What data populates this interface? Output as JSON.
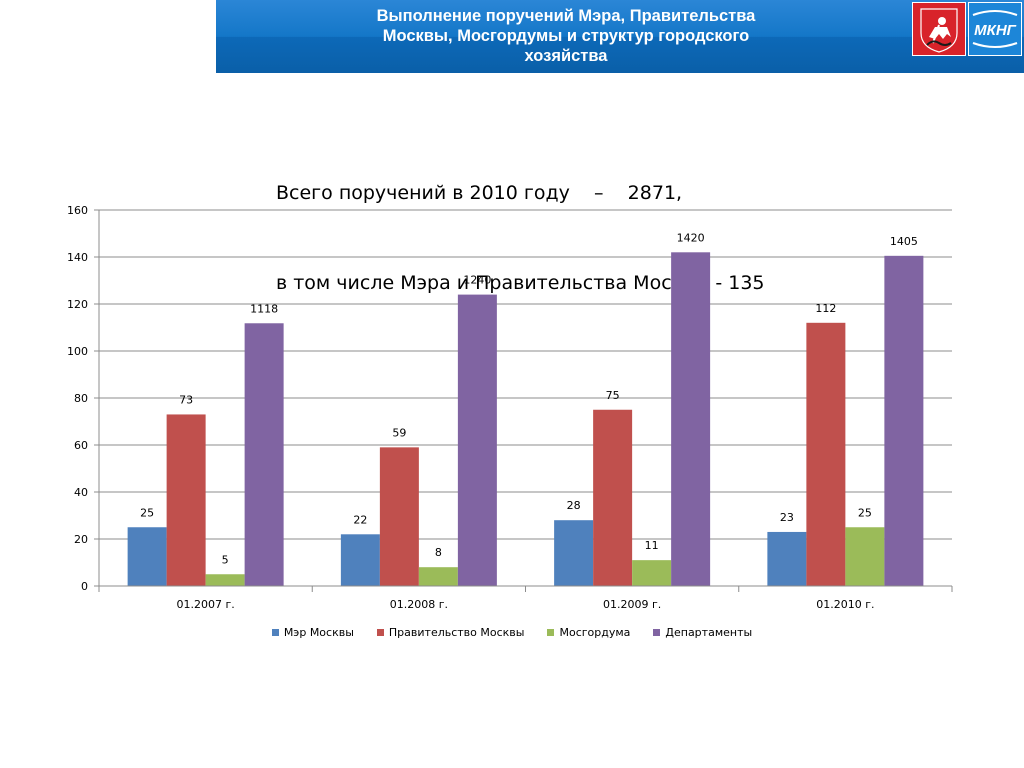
{
  "header": {
    "title_lines": [
      "Выполнение поручений Мэра, Правительства",
      "Москвы, Мосгордумы и структур городского",
      "хозяйства"
    ],
    "logo_text": "МКНГ"
  },
  "summary": {
    "line1": "Всего поручений в 2010 году    –    2871,",
    "line2": "в том числе Мэра и Правительства Москвы - 135"
  },
  "chart_data": {
    "type": "bar",
    "categories": [
      "01.2007 г.",
      "01.2008 г.",
      "01.2009 г.",
      "01.2010 г."
    ],
    "series": [
      {
        "name": "Мэр Москвы",
        "color": "#4f81bd",
        "values": [
          25,
          22,
          28,
          23
        ]
      },
      {
        "name": "Правительство Москвы",
        "color": "#c0504d",
        "values": [
          73,
          59,
          75,
          112
        ]
      },
      {
        "name": "Мосгордума",
        "color": "#9bbb59",
        "values": [
          5,
          8,
          11,
          25
        ]
      },
      {
        "name": "Департаменты",
        "color": "#8064a2",
        "values": [
          1118,
          1240,
          1420,
          1405
        ],
        "plotted_scale": 0.1
      }
    ],
    "ylim": [
      0,
      160
    ],
    "yticks": [
      0,
      20,
      40,
      60,
      80,
      100,
      120,
      140,
      160
    ],
    "grid": true,
    "legend": "bottom"
  }
}
